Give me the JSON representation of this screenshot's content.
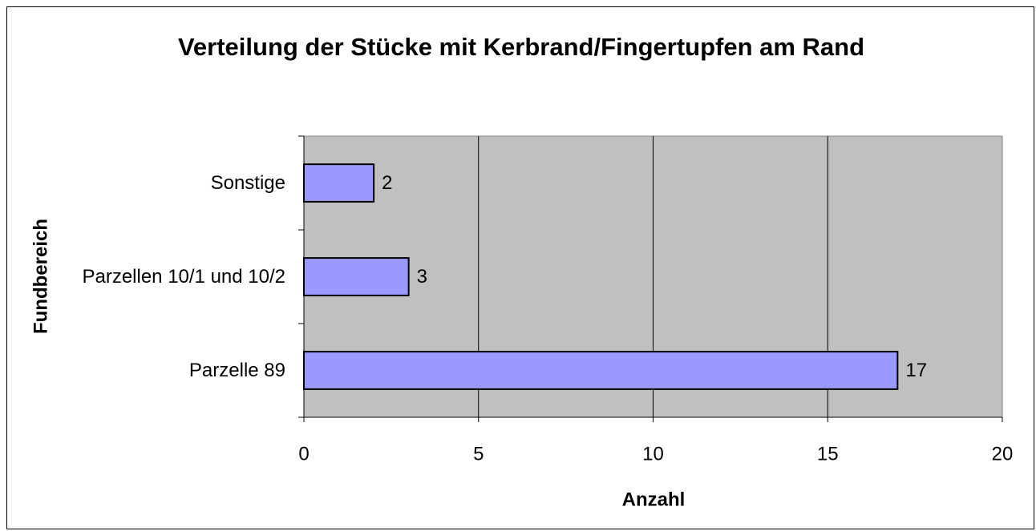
{
  "chart_data": {
    "type": "bar",
    "orientation": "horizontal",
    "title": "Verteilung der Stücke mit Kerbrand/Fingertupfen am Rand",
    "x_axis_label": "Anzahl",
    "y_axis_label": "Fundbereich",
    "categories": [
      "Parzelle 89",
      "Parzellen 10/1 und 10/2",
      "Sonstige"
    ],
    "values": [
      17,
      3,
      2
    ],
    "color": "#9999ff",
    "xlim": [
      0,
      20
    ],
    "xticks": [
      0,
      5,
      10,
      15,
      20
    ],
    "grid": true
  }
}
